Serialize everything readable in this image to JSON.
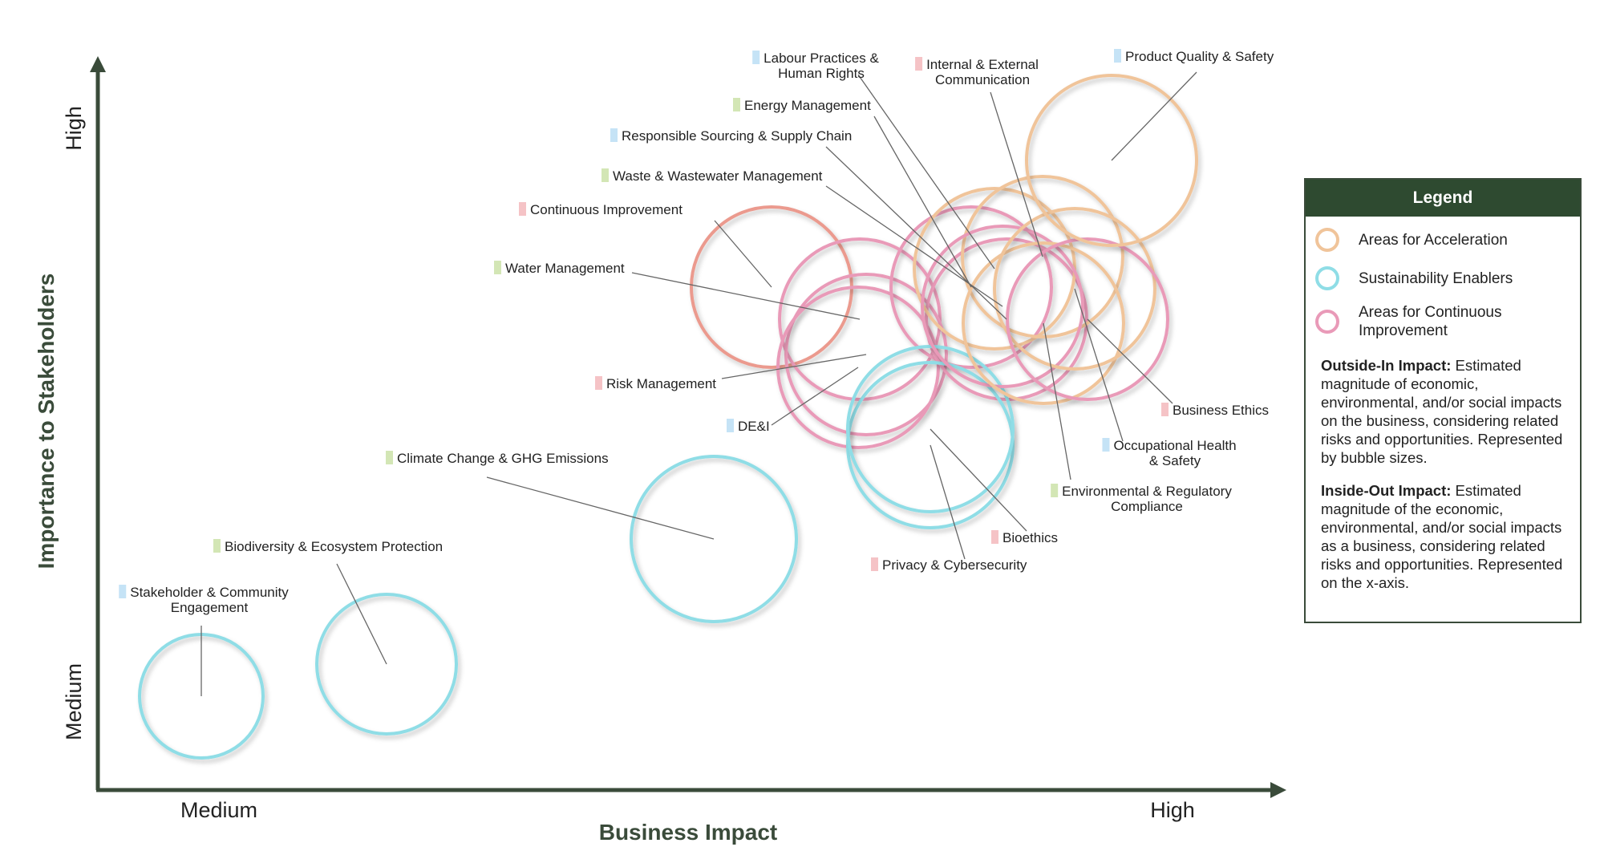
{
  "chart_data": {
    "type": "bubble",
    "xlabel": "Business Impact",
    "ylabel": "Importance to Stakeholders",
    "x_ticks": [
      "Medium",
      "High"
    ],
    "y_ticks": [
      "Medium",
      "High"
    ],
    "xlim": [
      0,
      10
    ],
    "ylim": [
      0,
      10
    ],
    "grid": false,
    "legend_position": "right",
    "categories": [
      {
        "id": "acceleration",
        "name": "Areas for Acceleration",
        "color": "#f0c49a"
      },
      {
        "id": "enablers",
        "name": "Sustainability Enablers",
        "color": "#8fdde6"
      },
      {
        "id": "continuous",
        "name": "Areas for Continuous Improvement",
        "color": "#e99ab8"
      }
    ],
    "topic_colors": {
      "blue": "#c5e3f6",
      "green": "#d3e6b5",
      "pink": "#f5c3c6"
    },
    "points": [
      {
        "label": "Stakeholder & Community Engagement",
        "category": "enablers",
        "x": 0.9,
        "y": 1.2,
        "size": 6.0,
        "topic": "blue",
        "mark_color": "#8fdde6"
      },
      {
        "label": "Biodiversity & Ecosystem Protection",
        "category": "enablers",
        "x": 2.4,
        "y": 1.6,
        "size": 6.8,
        "topic": "green",
        "mark_color": "#8fdde6"
      },
      {
        "label": "Climate Change & GHG Emissions",
        "category": "enablers",
        "x": 5.2,
        "y": 3.5,
        "size": 8.0,
        "topic": "green",
        "mark_color": "#8fdde6"
      },
      {
        "label": "Continuous Improvement",
        "category": "continuous",
        "x": 5.6,
        "y": 6.8,
        "size": 7.8,
        "topic": "pink",
        "mark_color": "#eb9a8e"
      },
      {
        "label": "Water Management",
        "category": "continuous",
        "x": 6.2,
        "y": 6.3,
        "size": 7.8,
        "topic": "green",
        "mark_color": "#e99ab8"
      },
      {
        "label": "Risk Management",
        "category": "continuous",
        "x": 6.5,
        "y": 5.7,
        "size": 7.8,
        "topic": "pink",
        "mark_color": "#e99ab8"
      },
      {
        "label": "DE&I",
        "category": "continuous",
        "x": 6.3,
        "y": 5.4,
        "size": 7.8,
        "topic": "blue",
        "mark_color": "#e99ab8"
      },
      {
        "label": "Energy Management",
        "category": "continuous",
        "x": 7.3,
        "y": 6.6,
        "size": 7.8,
        "topic": "green",
        "mark_color": "#e99ab8"
      },
      {
        "label": "Responsible Sourcing & Supply Chain",
        "category": "continuous",
        "x": 7.7,
        "y": 6.3,
        "size": 7.8,
        "topic": "blue",
        "mark_color": "#e99ab8"
      },
      {
        "label": "Privacy & Cybersecurity",
        "category": "enablers",
        "x": 7.0,
        "y": 4.6,
        "size": 8.0,
        "topic": "pink",
        "mark_color": "#8fdde6"
      },
      {
        "label": "Bioethics",
        "category": "enablers",
        "x": 7.0,
        "y": 5.1,
        "size": 8.0,
        "topic": "pink",
        "mark_color": "#8fdde6"
      },
      {
        "label": "Labour Practices & Human Rights",
        "category": "acceleration",
        "x": 7.9,
        "y": 6.8,
        "size": 7.8,
        "topic": "blue",
        "mark_color": "#f0c49a"
      },
      {
        "label": "Internal & External Communication",
        "category": "acceleration",
        "x": 8.3,
        "y": 6.8,
        "size": 7.8,
        "topic": "pink",
        "mark_color": "#f0c49a"
      },
      {
        "label": "Waste & Wastewater Management",
        "category": "continuous",
        "x": 8.0,
        "y": 6.1,
        "size": 7.8,
        "topic": "green",
        "mark_color": "#e99ab8"
      },
      {
        "label": "Environmental & Regulatory Compliance",
        "category": "acceleration",
        "x": 8.1,
        "y": 6.0,
        "size": 7.8,
        "topic": "green",
        "mark_color": "#f0c49a"
      },
      {
        "label": "Occupational Health & Safety",
        "category": "acceleration",
        "x": 8.5,
        "y": 6.5,
        "size": 7.8,
        "topic": "blue",
        "mark_color": "#f0c49a"
      },
      {
        "label": "Business Ethics",
        "category": "continuous",
        "x": 8.6,
        "y": 6.0,
        "size": 7.8,
        "topic": "pink",
        "mark_color": "#e99ab8"
      },
      {
        "label": "Product Quality & Safety",
        "category": "acceleration",
        "x": 8.9,
        "y": 8.5,
        "size": 8.2,
        "topic": "blue",
        "mark_color": "#f0c49a"
      }
    ]
  },
  "legend": {
    "title": "Legend",
    "items": [
      {
        "label": "Areas for Acceleration",
        "color": "#f0c49a"
      },
      {
        "label": "Sustainability Enablers",
        "color": "#8fdde6"
      },
      {
        "label": "Areas for Continuous Improvement",
        "color": "#e99ab8"
      }
    ],
    "outside_in_title": "Outside-In Impact:",
    "outside_in_text": " Estimated magnitude of economic, environmental, and/or social impacts on the business, considering related risks and opportunities. Represented by bubble sizes.",
    "inside_out_title": "Inside-Out Impact:",
    "inside_out_text": " Estimated magnitude of the economic, environmental, and/or social impacts as a business, considering related risks and opportunities. Represented on the x-axis."
  },
  "colors": {
    "axis": "#3a4b3a",
    "axis_title": "#3a4b3a",
    "leader": "#666666"
  }
}
